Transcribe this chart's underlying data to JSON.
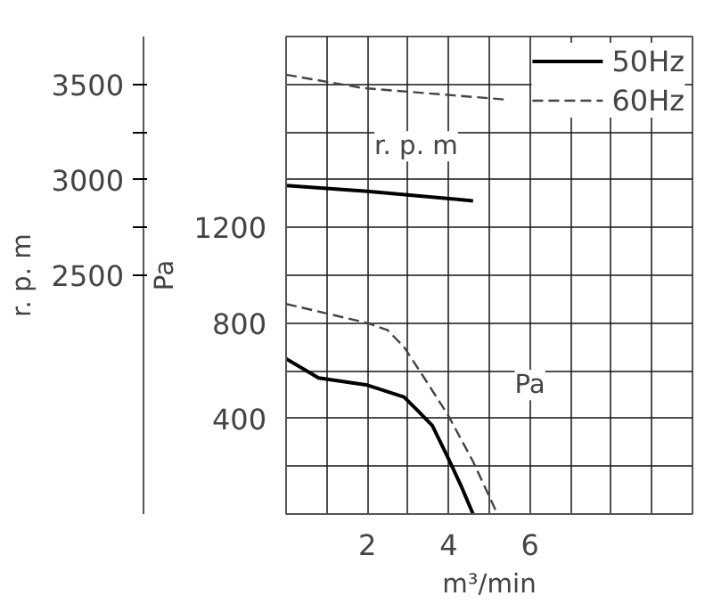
{
  "chart_data": {
    "type": "line",
    "xlabel": "m³/min",
    "ylabel": "Pa",
    "y2label": "r. p. m",
    "xlim": [
      0,
      10
    ],
    "xticks": [
      {
        "value": 0,
        "label": null
      },
      {
        "value": 1,
        "label": null
      },
      2,
      {
        "value": 3,
        "label": null
      },
      4,
      {
        "value": 5,
        "label": null
      },
      6,
      {
        "value": 7,
        "label": null
      },
      {
        "value": 8,
        "label": null
      },
      {
        "value": 9,
        "label": null
      },
      {
        "value": 10,
        "label": null
      }
    ],
    "ylim": [
      0,
      2000
    ],
    "yticks": [
      {
        "value": 0,
        "label": null
      },
      {
        "value": 200,
        "label": null
      },
      400,
      {
        "value": 600,
        "label": null
      },
      800,
      {
        "value": 1000,
        "label": null
      },
      1200,
      {
        "value": 1400,
        "label": null
      },
      {
        "value": 1600,
        "label": null
      },
      {
        "value": 1800,
        "label": null
      },
      {
        "value": 2000,
        "label": null
      }
    ],
    "y2lim": [
      1250,
      3750
    ],
    "y2ticks": [
      2500,
      {
        "value": 2750,
        "label": null
      },
      3000,
      {
        "value": 3250,
        "label": null
      },
      3500
    ],
    "grid": true,
    "legend": "top right",
    "marker": "none",
    "series": [
      {
        "name": "50Hz",
        "color": "#000000",
        "line_style": "solid",
        "x": [
          0,
          0.8,
          2,
          2.9,
          3.2,
          3.6,
          4,
          4.3,
          4.6
        ],
        "values": [
          650,
          570,
          540,
          490,
          440,
          370,
          230,
          120,
          0
        ]
      },
      {
        "name": "60Hz",
        "color": "#444444",
        "line_style": "dashed",
        "x": [
          0,
          1,
          2,
          2.5,
          2.9,
          3.4,
          4,
          4.6,
          5.2
        ],
        "values": [
          880,
          840,
          800,
          770,
          700,
          570,
          410,
          220,
          0
        ]
      },
      {
        "color": "#000000",
        "line_style": "solid",
        "axis": "y2",
        "x": [
          0,
          2,
          4.6
        ],
        "values": [
          2970,
          2940,
          2890
        ]
      },
      {
        "color": "#444444",
        "line_style": "dashed",
        "axis": "y2",
        "x": [
          0,
          1.9,
          5.4
        ],
        "values": [
          3550,
          3480,
          3420
        ]
      }
    ],
    "annotations": [
      "r. p. m",
      "Pa"
    ]
  }
}
